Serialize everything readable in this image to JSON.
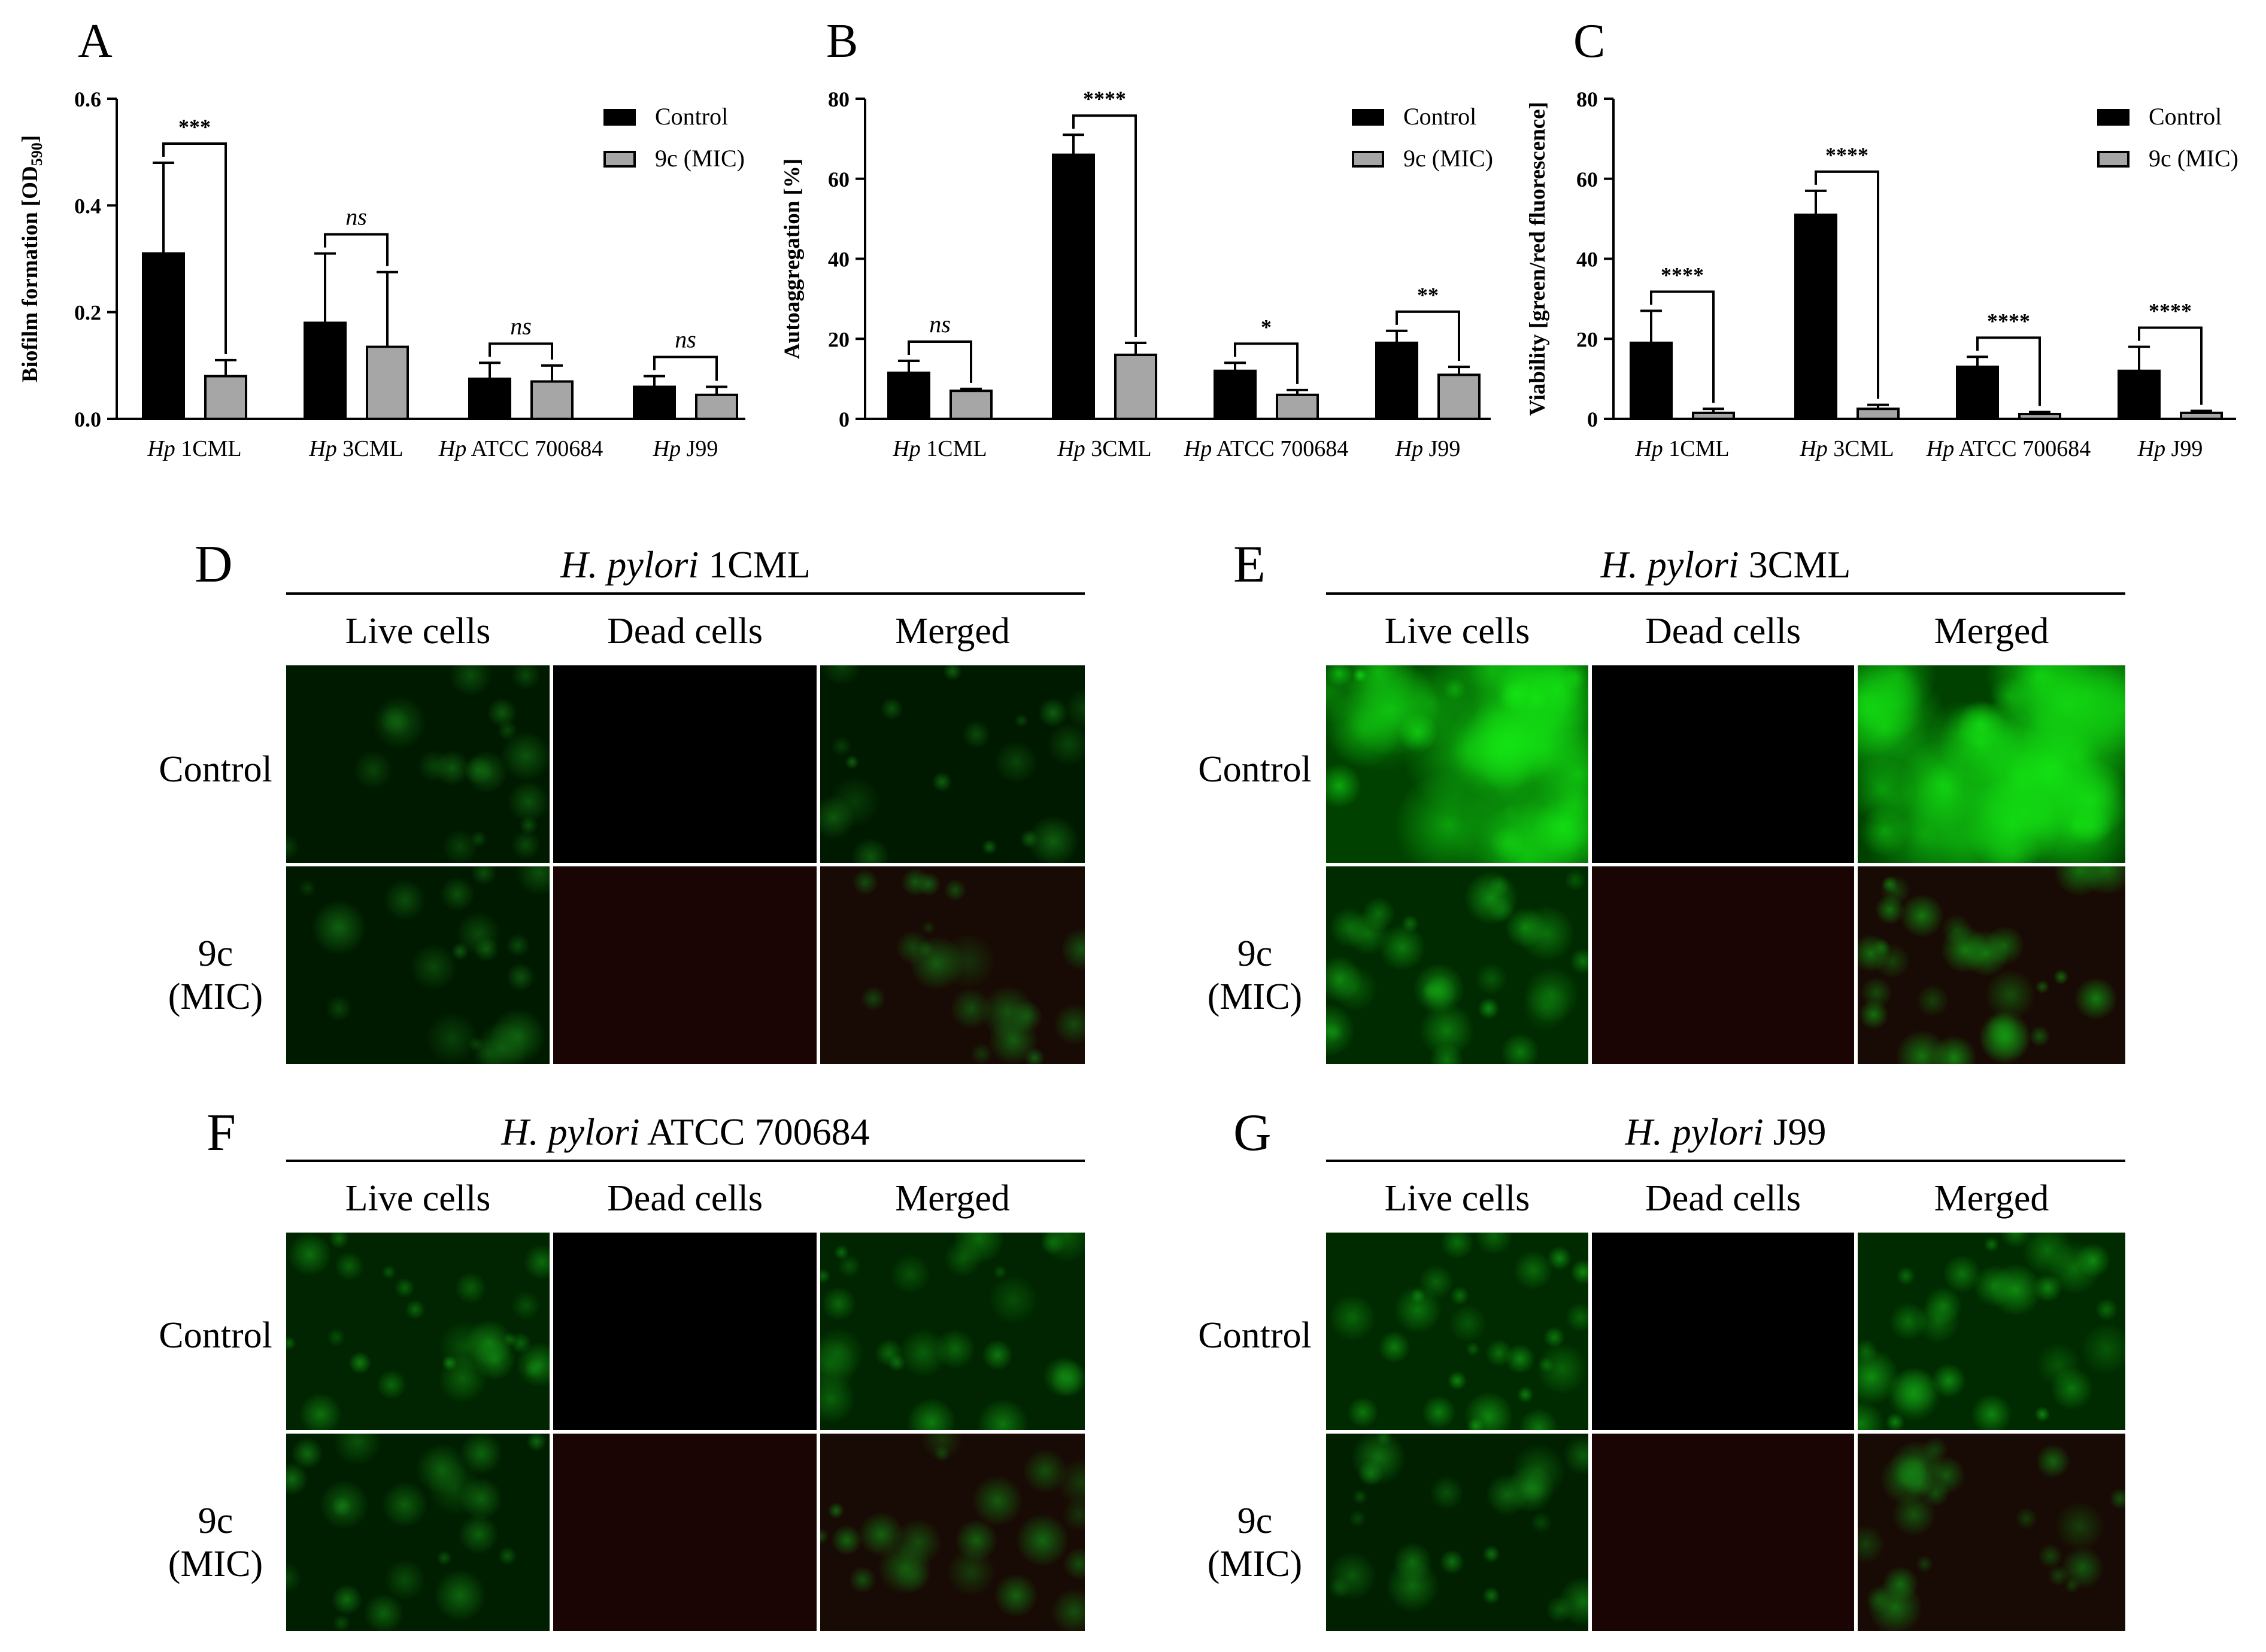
{
  "bar_colors": {
    "control": "#000000",
    "treated": "#a6a6a6"
  },
  "chart_data": [
    {
      "panel": "A",
      "type": "bar",
      "ylabel": "Biofilm formation [OD590]",
      "ylabel_main": "Biofilm formation [OD",
      "ylabel_sub": "590",
      "ylabel_end": "]",
      "ylim": [
        0,
        0.6
      ],
      "yticks": [
        0.0,
        0.2,
        0.4,
        0.6
      ],
      "ytick_labels": [
        "0.0",
        "0.2",
        "0.4",
        "0.6"
      ],
      "categories": [
        {
          "prefix": "Hp",
          "name": "1CML"
        },
        {
          "prefix": "Hp",
          "name": "3CML"
        },
        {
          "prefix": "Hp",
          "name": "ATCC 700684"
        },
        {
          "prefix": "Hp",
          "name": "J99"
        }
      ],
      "series": [
        {
          "name": "Control",
          "values": [
            0.31,
            0.18,
            0.075,
            0.06
          ],
          "errors": [
            0.17,
            0.13,
            0.03,
            0.02
          ]
        },
        {
          "name": "9c (MIC)",
          "values": [
            0.08,
            0.135,
            0.07,
            0.045
          ],
          "errors": [
            0.03,
            0.14,
            0.03,
            0.015
          ]
        }
      ],
      "significance": [
        "***",
        "ns",
        "ns",
        "ns"
      ],
      "legend_position": "top-right"
    },
    {
      "panel": "B",
      "type": "bar",
      "ylabel": "Autoaggregation [%]",
      "ylim": [
        0,
        80
      ],
      "yticks": [
        0,
        20,
        40,
        60,
        80
      ],
      "ytick_labels": [
        "0",
        "20",
        "40",
        "60",
        "80"
      ],
      "categories": [
        {
          "prefix": "Hp",
          "name": "1CML"
        },
        {
          "prefix": "Hp",
          "name": "3CML"
        },
        {
          "prefix": "Hp",
          "name": "ATCC 700684"
        },
        {
          "prefix": "Hp",
          "name": "J99"
        }
      ],
      "series": [
        {
          "name": "Control",
          "values": [
            11.5,
            66,
            12,
            19
          ],
          "errors": [
            3,
            5,
            2,
            3
          ]
        },
        {
          "name": "9c (MIC)",
          "values": [
            7,
            16,
            6,
            11
          ],
          "errors": [
            0.5,
            3,
            1.2,
            2
          ]
        }
      ],
      "significance": [
        "ns",
        "****",
        "*",
        "**"
      ],
      "legend_position": "top-right"
    },
    {
      "panel": "C",
      "type": "bar",
      "ylabel": "Viability [green/red fluorescence]",
      "ylim": [
        0,
        80
      ],
      "yticks": [
        0,
        20,
        40,
        60,
        80
      ],
      "ytick_labels": [
        "0",
        "20",
        "40",
        "60",
        "80"
      ],
      "categories": [
        {
          "prefix": "Hp",
          "name": "1CML"
        },
        {
          "prefix": "Hp",
          "name": "3CML"
        },
        {
          "prefix": "Hp",
          "name": "ATCC 700684"
        },
        {
          "prefix": "Hp",
          "name": "J99"
        }
      ],
      "series": [
        {
          "name": "Control",
          "values": [
            19,
            51,
            13,
            12
          ],
          "errors": [
            8,
            6,
            2.5,
            6
          ]
        },
        {
          "name": "9c (MIC)",
          "values": [
            1.5,
            2.5,
            1.2,
            1.5
          ],
          "errors": [
            1,
            1,
            0.5,
            0.5
          ]
        }
      ],
      "significance": [
        "****",
        "****",
        "****",
        "****"
      ],
      "legend_position": "top-right"
    }
  ],
  "micrographs": {
    "columns": [
      "Live cells",
      "Dead cells",
      "Merged"
    ],
    "rows": [
      "Control",
      "9c",
      "(MIC)"
    ],
    "panels": [
      {
        "letter": "D",
        "species": "H. pylori",
        "strain": "1CML",
        "live_brightness": {
          "control": 0.15,
          "treated": 0.14
        }
      },
      {
        "letter": "E",
        "species": "H. pylori",
        "strain": "3CML",
        "live_brightness": {
          "control": 0.85,
          "treated": 0.45
        }
      },
      {
        "letter": "F",
        "species": "H. pylori",
        "strain": "ATCC 700684",
        "live_brightness": {
          "control": 0.35,
          "treated": 0.22
        }
      },
      {
        "letter": "G",
        "species": "H. pylori",
        "strain": "J99",
        "live_brightness": {
          "control": 0.45,
          "treated": 0.25
        }
      }
    ]
  }
}
